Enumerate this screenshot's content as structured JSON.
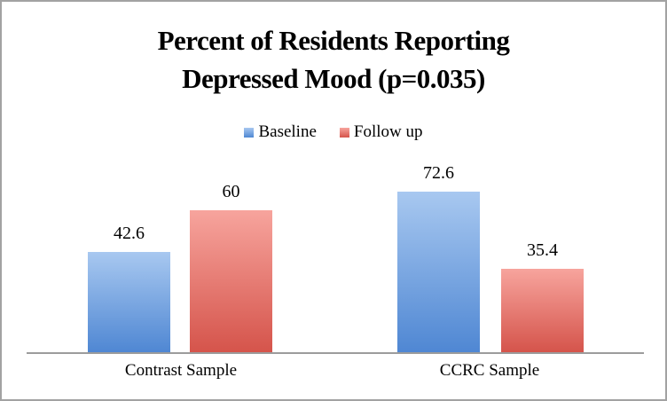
{
  "chart_data": {
    "type": "bar",
    "title": "Percent of Residents Reporting Depressed Mood (p=0.035)",
    "title_lines": [
      "Percent of Residents Reporting",
      "Depressed Mood (p=0.035)"
    ],
    "categories": [
      "Contrast Sample",
      "CCRC Sample"
    ],
    "series": [
      {
        "name": "Baseline",
        "values": [
          42.6,
          72.6
        ]
      },
      {
        "name": "Follow up",
        "values": [
          60,
          35.4
        ]
      }
    ],
    "ylim": [
      0,
      80
    ],
    "grid": false,
    "legend_position": "top-center",
    "data_labels_shown": true,
    "colors": {
      "baseline_top": "#A8C8F0",
      "baseline_bottom": "#4F87D3",
      "followup_top": "#F7A49D",
      "followup_bottom": "#D5544B",
      "axis_line": "#9C9C9C",
      "chart_border": "#A2A2A2",
      "text": "#000000"
    }
  }
}
